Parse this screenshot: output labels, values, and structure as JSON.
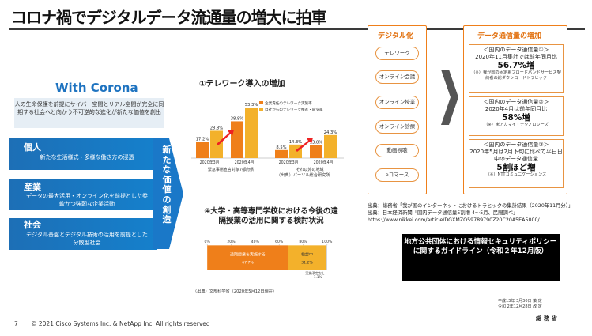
{
  "slide": {
    "title": "コロナ禍でデジタルデータ流通量の増大に拍車",
    "page_number": "7",
    "footer": "© 2021 Cisco Systems Inc. & NetApp Inc. All rights reserved"
  },
  "corona": {
    "heading": "With Corona",
    "description": "人の生命保護を前提にサイバー空間とリアル空間が完全に同期する社会へと向かう不可逆的な進化が新たな価値を創出",
    "sections": [
      {
        "head": "個人",
        "text": "新たな生活様式・多様な働き方の浸透"
      },
      {
        "head": "産業",
        "text": "データの最大活用・オンライン化を前提とした柔軟かつ強靭な企業活動"
      },
      {
        "head": "社会",
        "text": "デジタル基盤とデジタル技術の活用を前提とした分散型社会"
      }
    ],
    "arrow_text": "新たな価値の創造"
  },
  "telework": {
    "title": "①テレワーク導入の増加",
    "legend": [
      "企業責任のテレワーク実施率",
      "自社からのテレワーク推進・命令率"
    ],
    "group_label_1": "緊急事態宣言対象7都府県",
    "group_label_2": "それ以外の地域",
    "source": "（出典）パーソル総合研究所"
  },
  "chart_data": {
    "type": "bar",
    "title": "①テレワーク導入の増加",
    "categories": [
      "2020年3月",
      "2020年4月",
      "2020年3月",
      "2020年4月"
    ],
    "series": [
      {
        "name": "企業責任のテレワーク実施率",
        "values": [
          17.2,
          38.8,
          8.5,
          13.8
        ],
        "color": "#ef7f1a"
      },
      {
        "name": "自社からのテレワーク推進・命令率",
        "values": [
          28.8,
          53.3,
          14.3,
          24.3
        ],
        "color": "#f3b12b"
      }
    ],
    "data_labels": [
      "17.2%",
      "38.8%",
      "8.5%",
      "13.8%",
      "28.8%",
      "53.3%",
      "14.3%",
      "24.3%"
    ],
    "ylim": [
      0,
      60
    ]
  },
  "survey": {
    "title": "④大学・高等専門学校における今後の遠隔授業の活用に関する検討状況",
    "axis_ticks": [
      "0%",
      "20%",
      "40%",
      "60%",
      "80%",
      "100%"
    ],
    "segments": [
      {
        "label": "遠隔授業を実施する",
        "pct_text": "67.7%",
        "value": 67.7,
        "color": "#ef7f1a"
      },
      {
        "label": "検討中",
        "pct_text": "31.2%",
        "value": 31.2,
        "color": "#f3b12b"
      },
      {
        "label": "実施予定なし",
        "pct_text": "1.1%",
        "value": 1.1,
        "color": "#cccccc"
      }
    ],
    "source": "（出典）文部科学省（2020年5月12日現在）"
  },
  "digital": {
    "title": "デジタル化",
    "items": [
      "テレワーク",
      "オンライン会議",
      "オンライン授業",
      "オンライン診療",
      "動画視聴",
      "eコマース"
    ]
  },
  "traffic": {
    "title": "データ通信量の増加",
    "cards": [
      {
        "line1": "＜国内のデータ通信量①＞",
        "line2": "2020年11月集計では前年同月比",
        "big": "56.7%増",
        "note": "（※）我が国の固定系ブロードバンドサービス契約者の総ダウンロードトラヒック"
      },
      {
        "line1": "＜国内のデータ通信量②＞",
        "line2": "2020年4月は前年同月比",
        "big": "58%増",
        "note": "（※）米アカマイ・テクノロジーズ"
      },
      {
        "line1": "＜国内のデータ通信量③＞",
        "line2": "2020年5月は2月下旬に比べて平日日中のデータ通信量",
        "big": "5割ほど増",
        "note": "（※）NTTコミュニケーションズ"
      }
    ]
  },
  "sources": [
    "出典：総務省「我が国のインターネットにおけるトラヒックの集計結果（2020年11月分）」",
    "出典：日本経済新聞「国内データ通信量5割増 4～5月、民間調べ」",
    "https://www.nikkei.com/article/DGXMZO59789790Z20C20A5EA5000/"
  ],
  "guideline": {
    "title": "地方公共団体における情報セキュリティポリシーに関するガイドライン（令和２年12月版）",
    "dates": [
      "平成13年 3月30日 策 定",
      "令和 2年12月28日 改 定"
    ],
    "ministry": "総務省"
  }
}
